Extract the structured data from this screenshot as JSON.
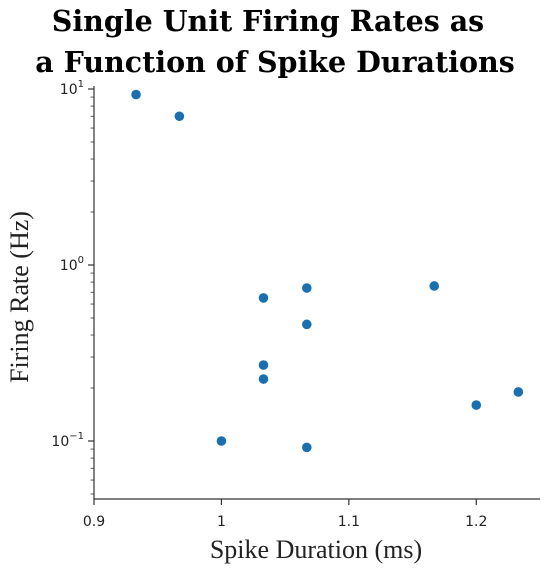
{
  "chart_data": {
    "type": "scatter",
    "title": [
      "Single Unit Firing Rates as",
      "a Function of Spike Durations"
    ],
    "xlabel": "Spike Duration (ms)",
    "ylabel": "Firing Rate (Hz)",
    "xlim": [
      0.9,
      1.25
    ],
    "ylim": [
      0.05,
      10
    ],
    "yscale": "log",
    "grid": false,
    "marker_color": "#1a6faf",
    "x_ticks": [
      {
        "value": 0.9,
        "label": "0.9"
      },
      {
        "value": 1.0,
        "label": "1"
      },
      {
        "value": 1.1,
        "label": "1.1"
      },
      {
        "value": 1.2,
        "label": "1.2"
      }
    ],
    "y_ticks": [
      {
        "value": 0.1,
        "base": "10",
        "exp": "−1"
      },
      {
        "value": 1,
        "base": "10",
        "exp": "0"
      },
      {
        "value": 10,
        "base": "10",
        "exp": "1"
      }
    ],
    "points": [
      {
        "x": 0.933,
        "y": 9.3
      },
      {
        "x": 0.967,
        "y": 7.0
      },
      {
        "x": 1.0,
        "y": 0.1
      },
      {
        "x": 1.033,
        "y": 0.65
      },
      {
        "x": 1.033,
        "y": 0.27
      },
      {
        "x": 1.033,
        "y": 0.225
      },
      {
        "x": 1.067,
        "y": 0.74
      },
      {
        "x": 1.067,
        "y": 0.46
      },
      {
        "x": 1.067,
        "y": 0.092
      },
      {
        "x": 1.167,
        "y": 0.76
      },
      {
        "x": 1.2,
        "y": 0.16
      },
      {
        "x": 1.233,
        "y": 0.19
      }
    ]
  }
}
